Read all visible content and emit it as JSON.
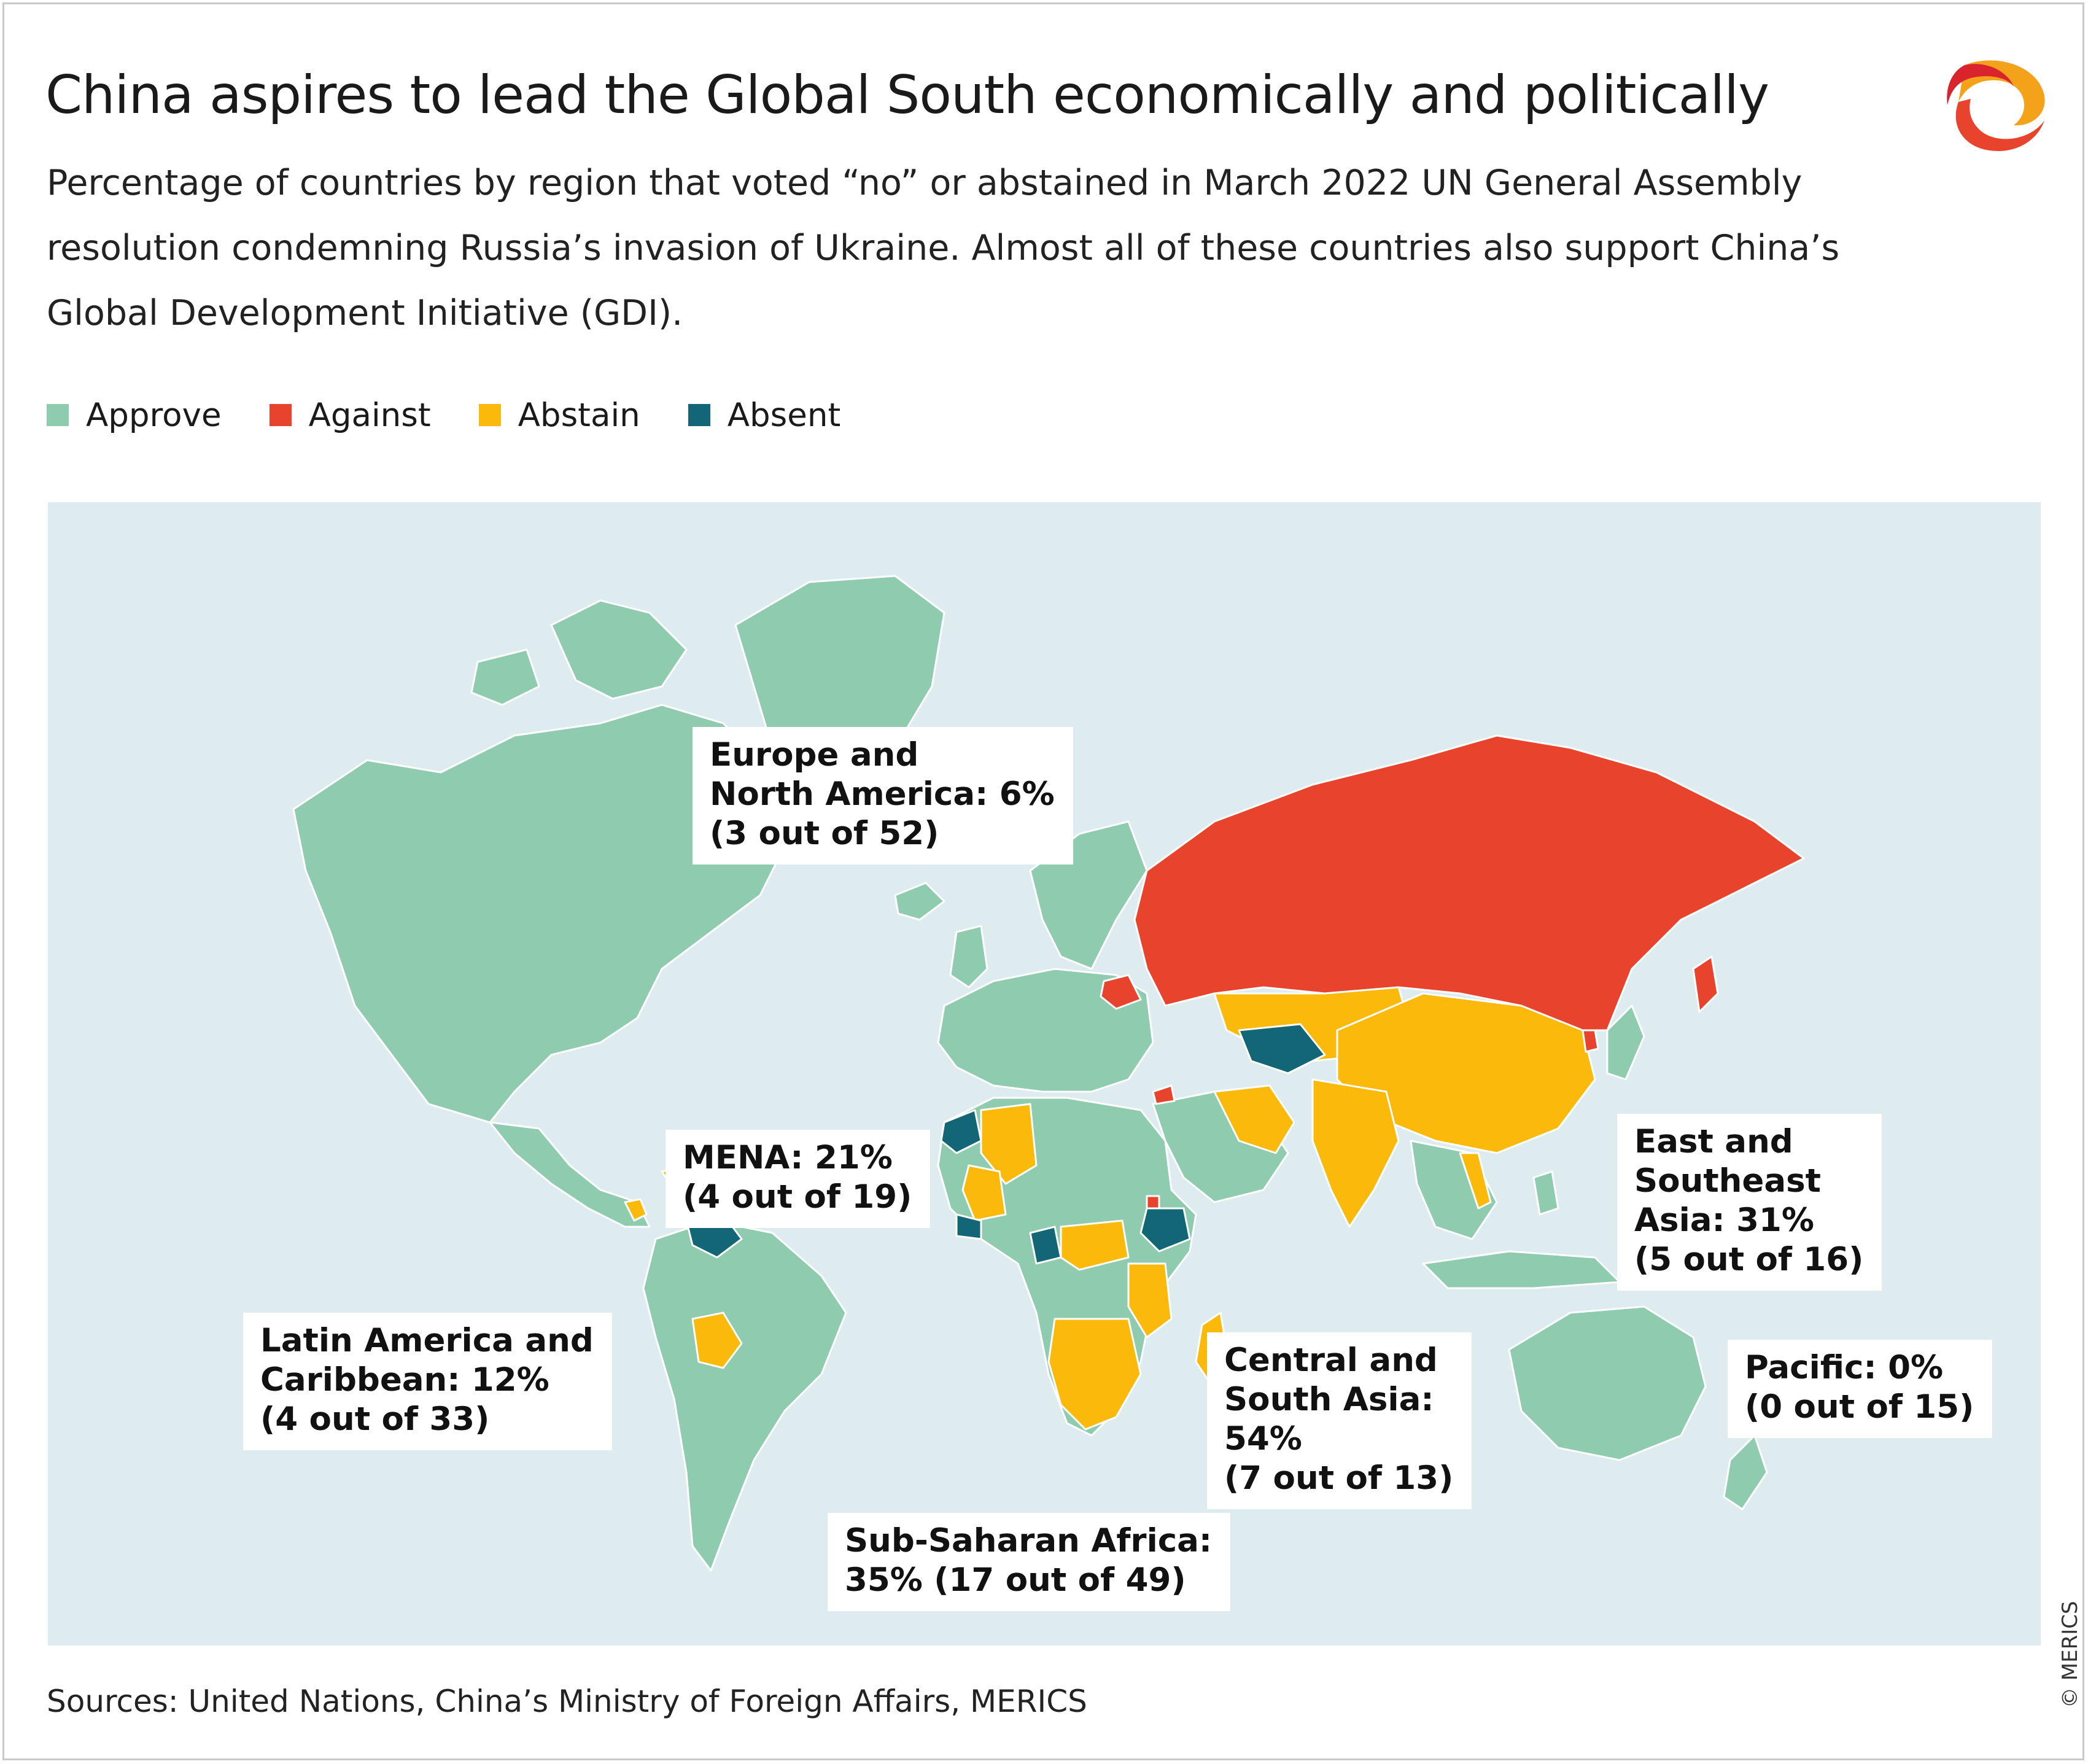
{
  "title": "China aspires to lead the Global South economically and politically",
  "subtitle": "Percentage of countries by region that voted “no” or abstained in March 2022 UN General Assembly resolution condemning Russia’s invasion of Ukraine. Almost all of these countries also support China’s Global Development Initiative (GDI).",
  "legend": [
    {
      "label": "Approve",
      "color": "#8ecbaf"
    },
    {
      "label": "Against",
      "color": "#e8432c"
    },
    {
      "label": "Abstain",
      "color": "#fbb90b"
    },
    {
      "label": "Absent",
      "color": "#136675"
    }
  ],
  "colors": {
    "ocean": "#dfecef",
    "approve": "#8ecbaf",
    "against": "#e8432c",
    "abstain": "#fbb90b",
    "absent": "#136675",
    "border": "#ffffff"
  },
  "regions": [
    {
      "id": "europe-north-america",
      "lines": [
        "Europe and",
        "North America: 6%",
        "(3 out of 52)"
      ]
    },
    {
      "id": "mena",
      "lines": [
        "MENA: 21%",
        "(4 out of 19)"
      ]
    },
    {
      "id": "east-southeast-asia",
      "lines": [
        "East and",
        "Southeast",
        "Asia: 31%",
        "(5 out of 16)"
      ]
    },
    {
      "id": "latin-america-caribbean",
      "lines": [
        "Latin America and",
        "Caribbean: 12%",
        "(4 out of 33)"
      ]
    },
    {
      "id": "central-south-asia",
      "lines": [
        "Central and",
        "South Asia:",
        "54%",
        "(7 out of 13)"
      ]
    },
    {
      "id": "pacific",
      "lines": [
        "Pacific: 0%",
        "(0 out of 15)"
      ]
    },
    {
      "id": "sub-saharan-africa",
      "lines": [
        "Sub-Saharan Africa:",
        "35% (17 out of 49)"
      ]
    }
  ],
  "source": "Sources: United Nations, China’s Ministry of Foreign Affairs, MERICS",
  "copyright": "© MERICS",
  "logo_icon": "merics-logo-icon"
}
